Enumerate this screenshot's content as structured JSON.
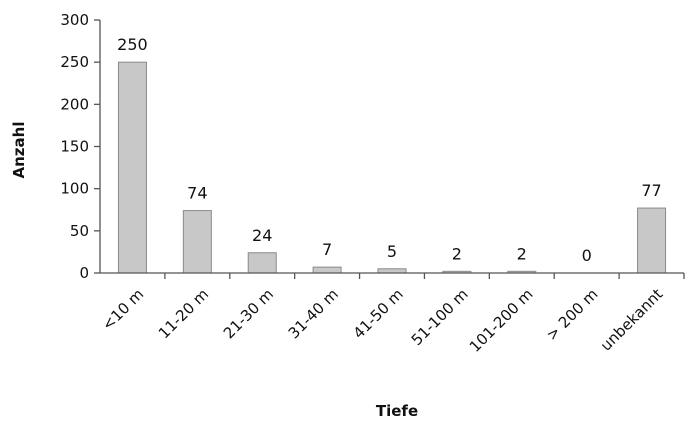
{
  "chart_data": {
    "type": "bar",
    "categories": [
      "<10 m",
      "11-20 m",
      "21-30 m",
      "31-40 m",
      "41-50 m",
      "51-100 m",
      "101-200 m",
      "> 200 m",
      "unbekannt"
    ],
    "values": [
      250,
      74,
      24,
      7,
      5,
      2,
      2,
      0,
      77
    ],
    "data_labels": [
      "250",
      "74",
      "24",
      "7",
      "5",
      "2",
      "2",
      "0",
      "77"
    ],
    "xlabel": "Tiefe",
    "ylabel": "Anzahl",
    "ylim": [
      0,
      300
    ],
    "yticks": [
      "0",
      "50",
      "100",
      "150",
      "200",
      "250",
      "300"
    ],
    "grid": false,
    "bar_color": "#c8c8c8",
    "bar_edge_color": "#8a8a8a"
  }
}
